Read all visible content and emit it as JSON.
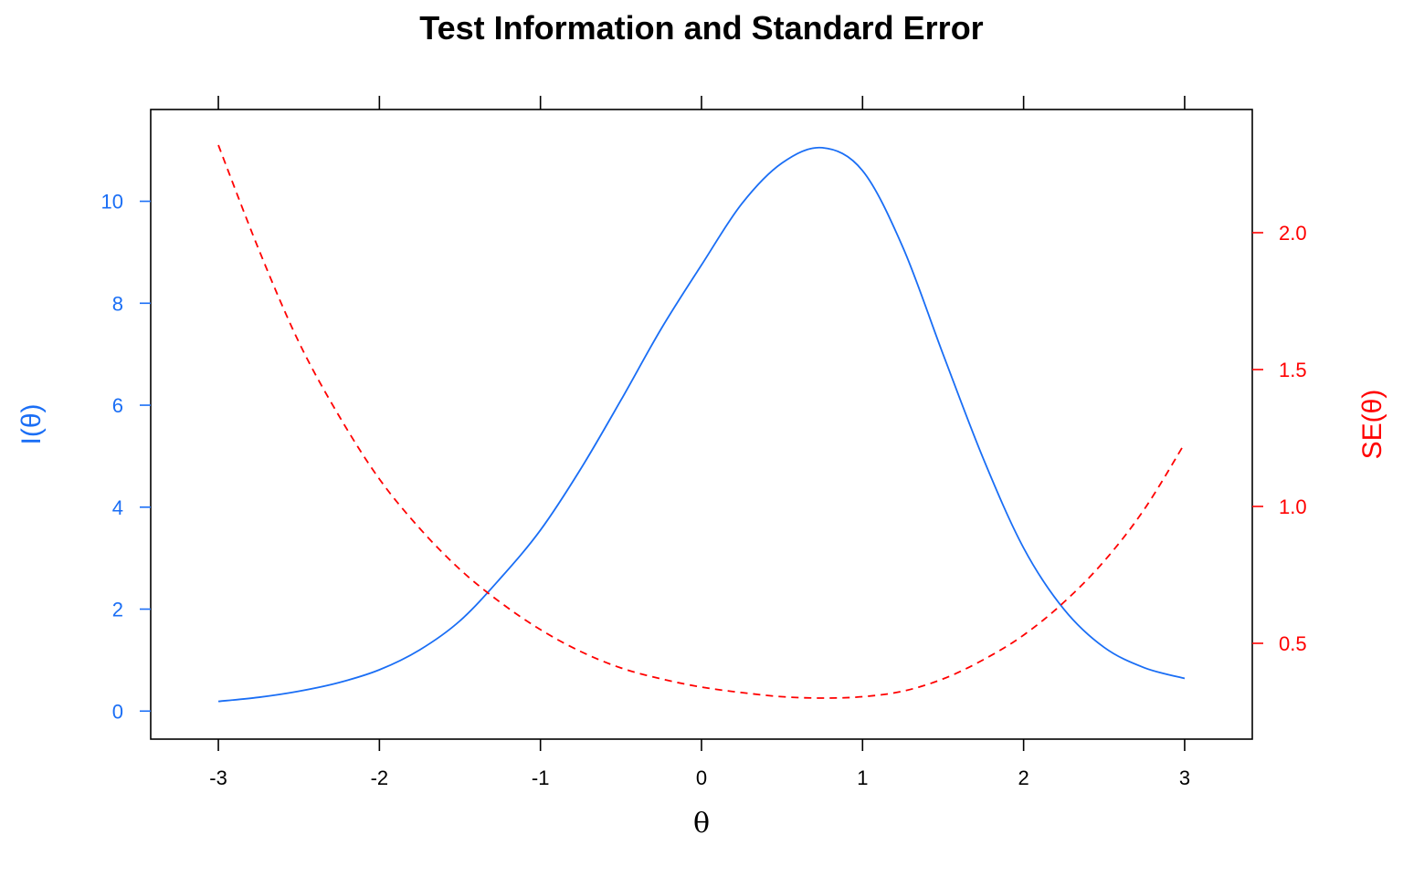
{
  "chart_data": {
    "type": "line",
    "title": "Test Information and Standard Error",
    "xlabel": "θ",
    "ylabel_left": "I(θ)",
    "ylabel_right": "SE(θ)",
    "xlim": [
      -3.42,
      3.42
    ],
    "ylim_left": [
      -0.55,
      11.8
    ],
    "ylim_right": [
      0.15,
      2.45
    ],
    "x_ticks": [
      -3,
      -2,
      -1,
      0,
      1,
      2,
      3
    ],
    "x_tick_labels": [
      "-3",
      "-2",
      "-1",
      "0",
      "1",
      "2",
      "3"
    ],
    "y_left_ticks": [
      0,
      2,
      4,
      6,
      8,
      10
    ],
    "y_left_tick_labels": [
      "0",
      "2",
      "4",
      "6",
      "8",
      "10"
    ],
    "y_right_ticks": [
      0.5,
      1.0,
      1.5,
      2.0
    ],
    "y_right_tick_labels": [
      "0.5",
      "1.0",
      "1.5",
      "2.0"
    ],
    "grid": false,
    "x": [
      -3.0,
      -2.75,
      -2.5,
      -2.25,
      -2.0,
      -1.75,
      -1.5,
      -1.25,
      -1.0,
      -0.75,
      -0.5,
      -0.25,
      0.0,
      0.25,
      0.5,
      0.75,
      1.0,
      1.25,
      1.5,
      1.75,
      2.0,
      2.25,
      2.5,
      2.75,
      3.0
    ],
    "series": [
      {
        "axis": "left",
        "style": "solid",
        "color": "#1a6ef5",
        "values": [
          0.19,
          0.27,
          0.39,
          0.56,
          0.81,
          1.2,
          1.77,
          2.6,
          3.55,
          4.75,
          6.1,
          7.5,
          8.75,
          9.95,
          10.75,
          11.05,
          10.6,
          9.1,
          7.0,
          4.95,
          3.2,
          2.0,
          1.25,
          0.85,
          0.64
        ]
      },
      {
        "axis": "right",
        "style": "dashed",
        "color": "#ff0000",
        "values": [
          2.32,
          1.94,
          1.6,
          1.33,
          1.1,
          0.92,
          0.77,
          0.65,
          0.55,
          0.47,
          0.41,
          0.37,
          0.34,
          0.32,
          0.305,
          0.3,
          0.305,
          0.325,
          0.37,
          0.44,
          0.53,
          0.65,
          0.8,
          0.99,
          1.23
        ]
      }
    ]
  },
  "colors": {
    "left_axis": "#1a6ef5",
    "right_axis": "#ff0000",
    "frame": "#000000"
  }
}
